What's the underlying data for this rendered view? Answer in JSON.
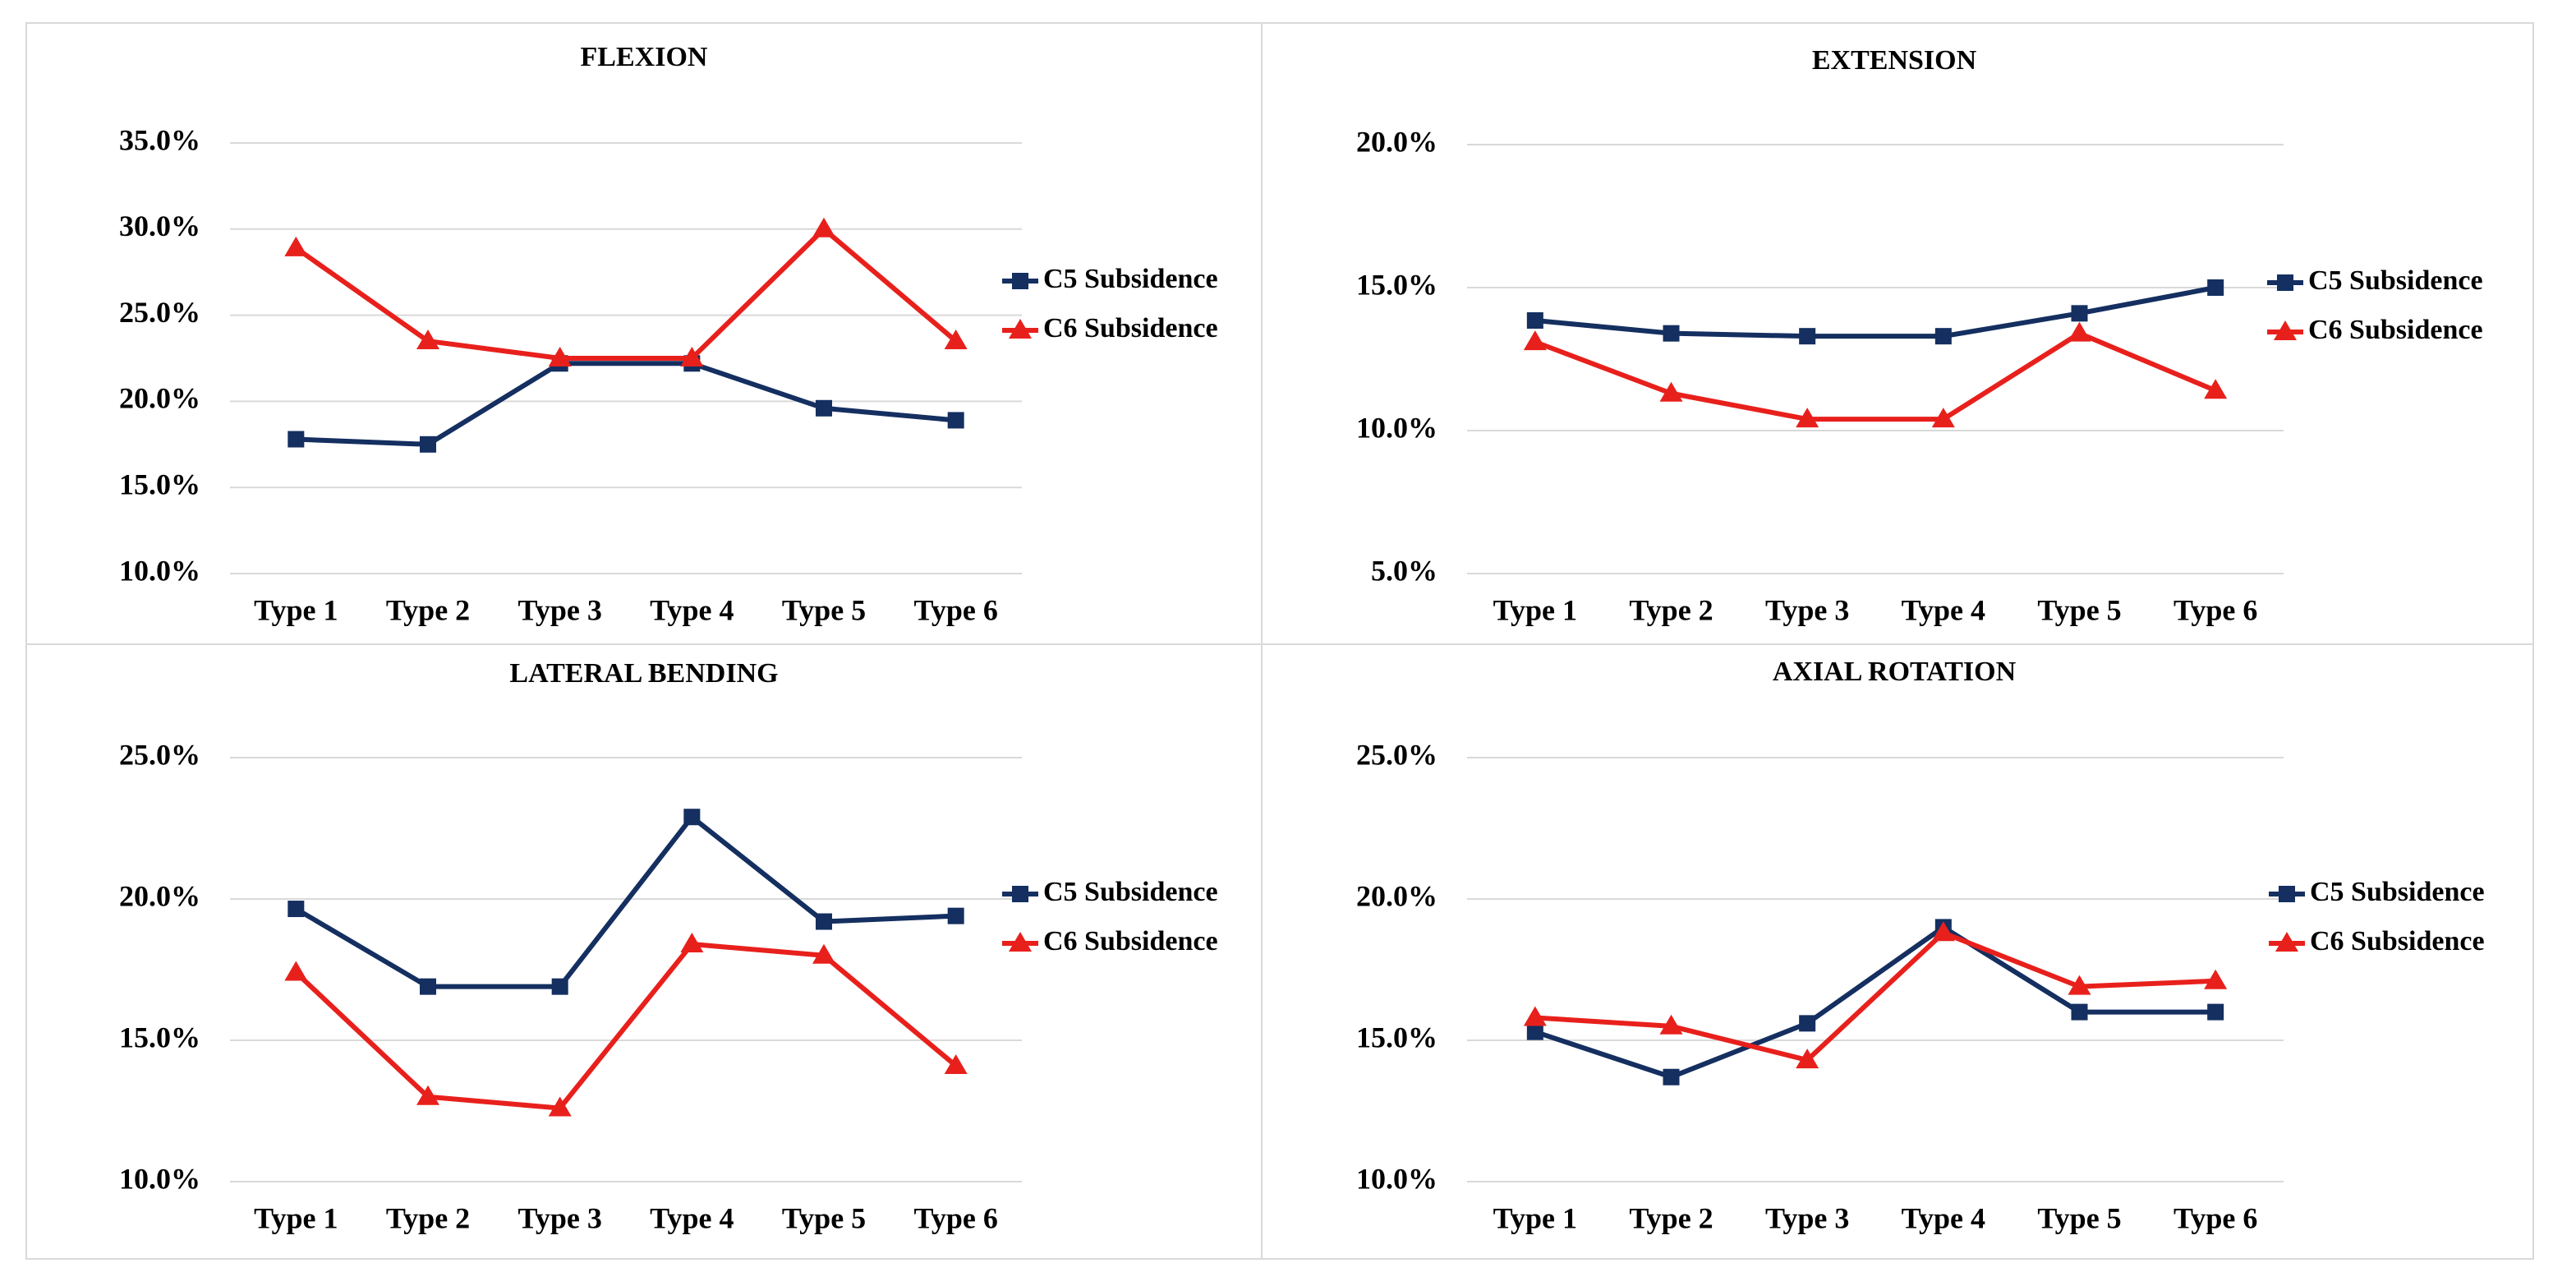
{
  "chart_data": [
    {
      "type": "line",
      "title": "FLEXION",
      "categories": [
        "Type 1",
        "Type 2",
        "Type 3",
        "Type 4",
        "Type 5",
        "Type 6"
      ],
      "series": [
        {
          "name": "C5 Subsidence",
          "color": "#142f60",
          "marker": "square",
          "values": [
            17.8,
            17.5,
            22.2,
            22.2,
            19.6,
            18.9
          ]
        },
        {
          "name": "C6 Subsidence",
          "color": "#e8201c",
          "marker": "triangle",
          "values": [
            28.9,
            23.5,
            22.5,
            22.5,
            30.0,
            23.5
          ]
        }
      ],
      "ylim": [
        10,
        35
      ],
      "yticks": [
        {
          "value": 10,
          "label": "10.0%"
        },
        {
          "value": 15,
          "label": "15.0%"
        },
        {
          "value": 20,
          "label": "20.0%"
        },
        {
          "value": 25,
          "label": "25.0%"
        },
        {
          "value": 30,
          "label": "30.0%"
        },
        {
          "value": 35,
          "label": "35.0%"
        }
      ],
      "grid": true,
      "legend": "right"
    },
    {
      "type": "line",
      "title": "EXTENSION",
      "categories": [
        "Type 1",
        "Type 2",
        "Type 3",
        "Type 4",
        "Type 5",
        "Type 6"
      ],
      "series": [
        {
          "name": "C5 Subsidence",
          "color": "#142f60",
          "marker": "square",
          "values": [
            13.85,
            13.4,
            13.3,
            13.3,
            14.1,
            15.0
          ]
        },
        {
          "name": "C6 Subsidence",
          "color": "#e8201c",
          "marker": "triangle",
          "values": [
            13.1,
            11.3,
            10.4,
            10.4,
            13.4,
            11.4
          ]
        }
      ],
      "ylim": [
        5,
        20
      ],
      "yticks": [
        {
          "value": 5,
          "label": "5.0%"
        },
        {
          "value": 10,
          "label": "10.0%"
        },
        {
          "value": 15,
          "label": "15.0%"
        },
        {
          "value": 20,
          "label": "20.0%"
        }
      ],
      "grid": true,
      "legend": "right"
    },
    {
      "type": "line",
      "title": "LATERAL BENDING",
      "categories": [
        "Type 1",
        "Type 2",
        "Type 3",
        "Type 4",
        "Type 5",
        "Type 6"
      ],
      "series": [
        {
          "name": "C5 Subsidence",
          "color": "#142f60",
          "marker": "square",
          "values": [
            19.65,
            16.9,
            16.9,
            22.9,
            19.2,
            19.4
          ]
        },
        {
          "name": "C6 Subsidence",
          "color": "#e8201c",
          "marker": "triangle",
          "values": [
            17.4,
            13.0,
            12.6,
            18.4,
            18.0,
            14.1
          ]
        }
      ],
      "ylim": [
        10,
        25
      ],
      "yticks": [
        {
          "value": 10,
          "label": "10.0%"
        },
        {
          "value": 15,
          "label": "15.0%"
        },
        {
          "value": 20,
          "label": "20.0%"
        },
        {
          "value": 25,
          "label": "25.0%"
        }
      ],
      "grid": true,
      "legend": "right"
    },
    {
      "type": "line",
      "title": "AXIAL ROTATION",
      "categories": [
        "Type 1",
        "Type 2",
        "Type 3",
        "Type 4",
        "Type 5",
        "Type 6"
      ],
      "series": [
        {
          "name": "C5 Subsidence",
          "color": "#142f60",
          "marker": "square",
          "values": [
            15.3,
            13.7,
            15.6,
            19.0,
            16.0,
            16.0
          ]
        },
        {
          "name": "C6 Subsidence",
          "color": "#e8201c",
          "marker": "triangle",
          "values": [
            15.8,
            15.5,
            14.3,
            18.8,
            16.9,
            17.1
          ]
        }
      ],
      "ylim": [
        10,
        25
      ],
      "yticks": [
        {
          "value": 10,
          "label": "10.0%"
        },
        {
          "value": 15,
          "label": "15.0%"
        },
        {
          "value": 20,
          "label": "20.0%"
        },
        {
          "value": 25,
          "label": "25.0%"
        }
      ],
      "grid": true,
      "legend": "right"
    }
  ]
}
